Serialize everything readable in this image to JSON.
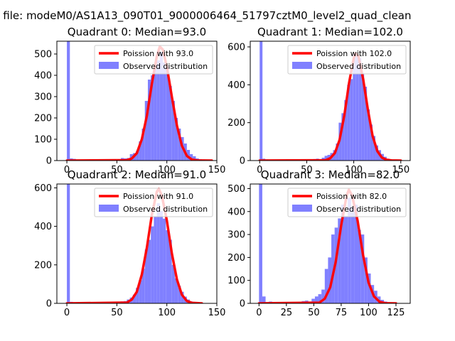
{
  "figure": {
    "suptitle": "n file: modeM0/AS1A13_090T01_9000006464_51797cztM0_level2_quad_clean"
  },
  "colors": {
    "bars": "#8080ff",
    "poisson": "#ff0000",
    "axes": "#000000"
  },
  "chart_data": [
    {
      "type": "bar",
      "title": "Quadrant 0: Median=93.0",
      "median": 93.0,
      "xlim": [
        -10,
        150
      ],
      "ylim": [
        0,
        560
      ],
      "xticks": [
        0,
        50,
        100,
        150
      ],
      "yticks": [
        0,
        100,
        200,
        300,
        400,
        500
      ],
      "bin_width": 3,
      "bars": [
        {
          "x": 0,
          "y": 560
        },
        {
          "x": 3,
          "y": 10
        },
        {
          "x": 6,
          "y": 8
        },
        {
          "x": 51,
          "y": 5
        },
        {
          "x": 54,
          "y": 12
        },
        {
          "x": 57,
          "y": 10
        },
        {
          "x": 60,
          "y": 12
        },
        {
          "x": 63,
          "y": 30
        },
        {
          "x": 66,
          "y": 35
        },
        {
          "x": 69,
          "y": 45
        },
        {
          "x": 72,
          "y": 90
        },
        {
          "x": 75,
          "y": 150
        },
        {
          "x": 78,
          "y": 280
        },
        {
          "x": 81,
          "y": 380
        },
        {
          "x": 84,
          "y": 400
        },
        {
          "x": 87,
          "y": 430
        },
        {
          "x": 90,
          "y": 470
        },
        {
          "x": 93,
          "y": 510
        },
        {
          "x": 96,
          "y": 460
        },
        {
          "x": 99,
          "y": 440
        },
        {
          "x": 102,
          "y": 350
        },
        {
          "x": 105,
          "y": 280
        },
        {
          "x": 108,
          "y": 200
        },
        {
          "x": 111,
          "y": 150
        },
        {
          "x": 114,
          "y": 110
        },
        {
          "x": 117,
          "y": 80
        },
        {
          "x": 120,
          "y": 50
        },
        {
          "x": 123,
          "y": 30
        },
        {
          "x": 126,
          "y": 20
        },
        {
          "x": 129,
          "y": 10
        },
        {
          "x": 132,
          "y": 6
        },
        {
          "x": 135,
          "y": 4
        }
      ],
      "poisson": [
        [
          0,
          0
        ],
        [
          60,
          2
        ],
        [
          65,
          10
        ],
        [
          70,
          35
        ],
        [
          75,
          100
        ],
        [
          80,
          210
        ],
        [
          85,
          360
        ],
        [
          90,
          490
        ],
        [
          93,
          535
        ],
        [
          96,
          520
        ],
        [
          100,
          440
        ],
        [
          105,
          300
        ],
        [
          110,
          165
        ],
        [
          115,
          70
        ],
        [
          120,
          22
        ],
        [
          125,
          5
        ],
        [
          130,
          1
        ],
        [
          145,
          0
        ]
      ],
      "legend": {
        "line": "Poission with 93.0",
        "bars": "Observed distribution",
        "position": "upper right"
      }
    },
    {
      "type": "bar",
      "title": "Quadrant 1: Median=102.0",
      "median": 102.0,
      "xlim": [
        -10,
        160
      ],
      "ylim": [
        0,
        630
      ],
      "xticks": [
        0,
        50,
        100,
        150
      ],
      "yticks": [
        0,
        200,
        400,
        600
      ],
      "bin_width": 3,
      "bars": [
        {
          "x": 0,
          "y": 630
        },
        {
          "x": 3,
          "y": 10
        },
        {
          "x": 6,
          "y": 6
        },
        {
          "x": 54,
          "y": 4
        },
        {
          "x": 57,
          "y": 8
        },
        {
          "x": 60,
          "y": 10
        },
        {
          "x": 66,
          "y": 15
        },
        {
          "x": 69,
          "y": 25
        },
        {
          "x": 72,
          "y": 30
        },
        {
          "x": 75,
          "y": 40
        },
        {
          "x": 78,
          "y": 55
        },
        {
          "x": 81,
          "y": 90
        },
        {
          "x": 84,
          "y": 200
        },
        {
          "x": 87,
          "y": 250
        },
        {
          "x": 90,
          "y": 320
        },
        {
          "x": 93,
          "y": 400
        },
        {
          "x": 96,
          "y": 430
        },
        {
          "x": 99,
          "y": 560
        },
        {
          "x": 102,
          "y": 560
        },
        {
          "x": 105,
          "y": 540
        },
        {
          "x": 108,
          "y": 460
        },
        {
          "x": 111,
          "y": 390
        },
        {
          "x": 114,
          "y": 270
        },
        {
          "x": 117,
          "y": 190
        },
        {
          "x": 120,
          "y": 130
        },
        {
          "x": 123,
          "y": 80
        },
        {
          "x": 126,
          "y": 55
        },
        {
          "x": 129,
          "y": 35
        },
        {
          "x": 132,
          "y": 20
        },
        {
          "x": 135,
          "y": 10
        },
        {
          "x": 138,
          "y": 6
        },
        {
          "x": 141,
          "y": 4
        }
      ],
      "poisson": [
        [
          0,
          0
        ],
        [
          70,
          2
        ],
        [
          75,
          12
        ],
        [
          80,
          40
        ],
        [
          85,
          110
        ],
        [
          90,
          240
        ],
        [
          95,
          410
        ],
        [
          100,
          540
        ],
        [
          102,
          565
        ],
        [
          105,
          550
        ],
        [
          110,
          430
        ],
        [
          115,
          270
        ],
        [
          120,
          130
        ],
        [
          125,
          50
        ],
        [
          130,
          15
        ],
        [
          135,
          4
        ],
        [
          140,
          1
        ],
        [
          150,
          0
        ]
      ],
      "legend": {
        "line": "Poission with 102.0",
        "bars": "Observed distribution",
        "position": "upper right"
      }
    },
    {
      "type": "bar",
      "title": "Quadrant 2: Median=91.0",
      "median": 91.0,
      "xlim": [
        -10,
        150
      ],
      "ylim": [
        0,
        620
      ],
      "xticks": [
        0,
        50,
        100,
        150
      ],
      "yticks": [
        0,
        200,
        400,
        600
      ],
      "bin_width": 3,
      "bars": [
        {
          "x": 0,
          "y": 620
        },
        {
          "x": 3,
          "y": 8
        },
        {
          "x": 51,
          "y": 5
        },
        {
          "x": 54,
          "y": 10
        },
        {
          "x": 57,
          "y": 12
        },
        {
          "x": 60,
          "y": 20
        },
        {
          "x": 63,
          "y": 30
        },
        {
          "x": 66,
          "y": 45
        },
        {
          "x": 69,
          "y": 80
        },
        {
          "x": 72,
          "y": 120
        },
        {
          "x": 75,
          "y": 180
        },
        {
          "x": 78,
          "y": 280
        },
        {
          "x": 81,
          "y": 330
        },
        {
          "x": 84,
          "y": 400
        },
        {
          "x": 87,
          "y": 450
        },
        {
          "x": 90,
          "y": 520
        },
        {
          "x": 93,
          "y": 480
        },
        {
          "x": 96,
          "y": 440
        },
        {
          "x": 99,
          "y": 380
        },
        {
          "x": 102,
          "y": 330
        },
        {
          "x": 105,
          "y": 200
        },
        {
          "x": 108,
          "y": 130
        },
        {
          "x": 111,
          "y": 90
        },
        {
          "x": 114,
          "y": 60
        },
        {
          "x": 117,
          "y": 35
        },
        {
          "x": 120,
          "y": 20
        },
        {
          "x": 123,
          "y": 10
        },
        {
          "x": 126,
          "y": 6
        }
      ],
      "poisson": [
        [
          0,
          0
        ],
        [
          60,
          4
        ],
        [
          65,
          20
        ],
        [
          70,
          60
        ],
        [
          75,
          150
        ],
        [
          80,
          290
        ],
        [
          85,
          460
        ],
        [
          90,
          580
        ],
        [
          92,
          595
        ],
        [
          95,
          560
        ],
        [
          100,
          430
        ],
        [
          105,
          260
        ],
        [
          110,
          125
        ],
        [
          115,
          45
        ],
        [
          120,
          12
        ],
        [
          125,
          3
        ],
        [
          135,
          0
        ]
      ],
      "legend": {
        "line": "Poission with 91.0",
        "bars": "Observed distribution",
        "position": "upper right"
      }
    },
    {
      "type": "bar",
      "title": "Quadrant 3: Median=82.0",
      "median": 82.0,
      "xlim": [
        -8,
        138
      ],
      "ylim": [
        0,
        520
      ],
      "xticks": [
        0,
        25,
        50,
        75,
        100,
        125
      ],
      "yticks": [
        0,
        100,
        200,
        300,
        400,
        500
      ],
      "bin_width": 3,
      "bars": [
        {
          "x": 0,
          "y": 520
        },
        {
          "x": 3,
          "y": 30
        },
        {
          "x": 6,
          "y": 5
        },
        {
          "x": 9,
          "y": 8
        },
        {
          "x": 36,
          "y": 5
        },
        {
          "x": 39,
          "y": 10
        },
        {
          "x": 42,
          "y": 12
        },
        {
          "x": 45,
          "y": 8
        },
        {
          "x": 48,
          "y": 20
        },
        {
          "x": 51,
          "y": 30
        },
        {
          "x": 54,
          "y": 40
        },
        {
          "x": 57,
          "y": 60
        },
        {
          "x": 60,
          "y": 150
        },
        {
          "x": 63,
          "y": 200
        },
        {
          "x": 66,
          "y": 300
        },
        {
          "x": 69,
          "y": 330
        },
        {
          "x": 72,
          "y": 370
        },
        {
          "x": 75,
          "y": 430
        },
        {
          "x": 78,
          "y": 380
        },
        {
          "x": 81,
          "y": 460
        },
        {
          "x": 84,
          "y": 420
        },
        {
          "x": 87,
          "y": 430
        },
        {
          "x": 90,
          "y": 320
        },
        {
          "x": 93,
          "y": 300
        },
        {
          "x": 96,
          "y": 200
        },
        {
          "x": 99,
          "y": 130
        },
        {
          "x": 102,
          "y": 80
        },
        {
          "x": 105,
          "y": 55
        },
        {
          "x": 108,
          "y": 30
        },
        {
          "x": 111,
          "y": 15
        },
        {
          "x": 114,
          "y": 8
        }
      ],
      "poisson": [
        [
          0,
          0
        ],
        [
          55,
          3
        ],
        [
          60,
          20
        ],
        [
          65,
          70
        ],
        [
          70,
          180
        ],
        [
          75,
          340
        ],
        [
          80,
          470
        ],
        [
          82,
          495
        ],
        [
          85,
          470
        ],
        [
          90,
          360
        ],
        [
          95,
          210
        ],
        [
          100,
          90
        ],
        [
          105,
          30
        ],
        [
          110,
          7
        ],
        [
          115,
          1
        ],
        [
          125,
          0
        ]
      ],
      "legend": {
        "line": "Poission with 82.0",
        "bars": "Observed distribution",
        "position": "upper right"
      }
    }
  ]
}
